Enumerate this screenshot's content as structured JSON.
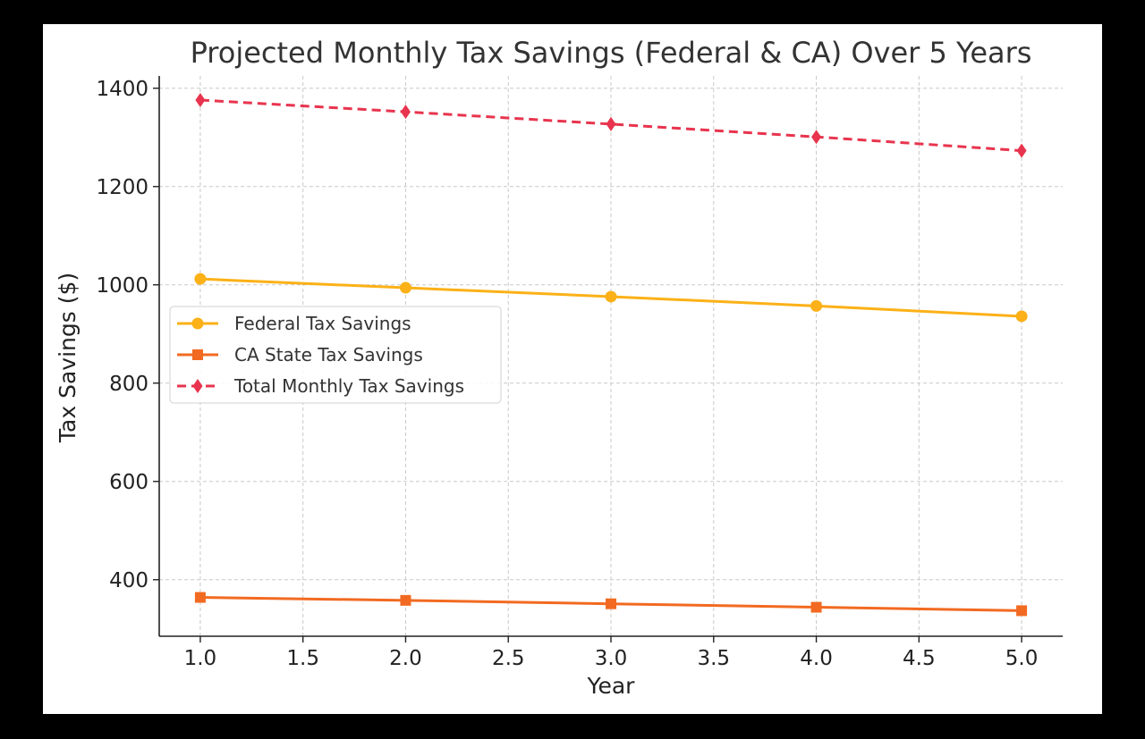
{
  "chart_data": {
    "type": "line",
    "title": "Projected Monthly Tax Savings (Federal & CA) Over 5 Years",
    "xlabel": "Year",
    "ylabel": "Tax Savings ($)",
    "x": [
      1,
      2,
      3,
      4,
      5
    ],
    "xlim": [
      0.8,
      5.2
    ],
    "ylim": [
      285,
      1425
    ],
    "xticks": [
      1.0,
      1.5,
      2.0,
      2.5,
      3.0,
      3.5,
      4.0,
      4.5,
      5.0
    ],
    "xtick_labels": [
      "1.0",
      "1.5",
      "2.0",
      "2.5",
      "3.0",
      "3.5",
      "4.0",
      "4.5",
      "5.0"
    ],
    "yticks": [
      400,
      600,
      800,
      1000,
      1200,
      1400
    ],
    "ytick_labels": [
      "400",
      "600",
      "800",
      "1000",
      "1200",
      "1400"
    ],
    "grid": true,
    "legend_position": "center-left",
    "series": [
      {
        "name": "Federal Tax Savings",
        "values": [
          1012,
          994,
          976,
          957,
          936
        ],
        "color": "#fbb117",
        "marker": "circle",
        "linestyle": "solid"
      },
      {
        "name": "CA State Tax Savings",
        "values": [
          364,
          358,
          351,
          344,
          337
        ],
        "color": "#f26a21",
        "marker": "square",
        "linestyle": "solid"
      },
      {
        "name": "Total Monthly Tax Savings",
        "values": [
          1376,
          1352,
          1327,
          1301,
          1273
        ],
        "color": "#e8344e",
        "marker": "diamond",
        "linestyle": "dashed"
      }
    ]
  }
}
